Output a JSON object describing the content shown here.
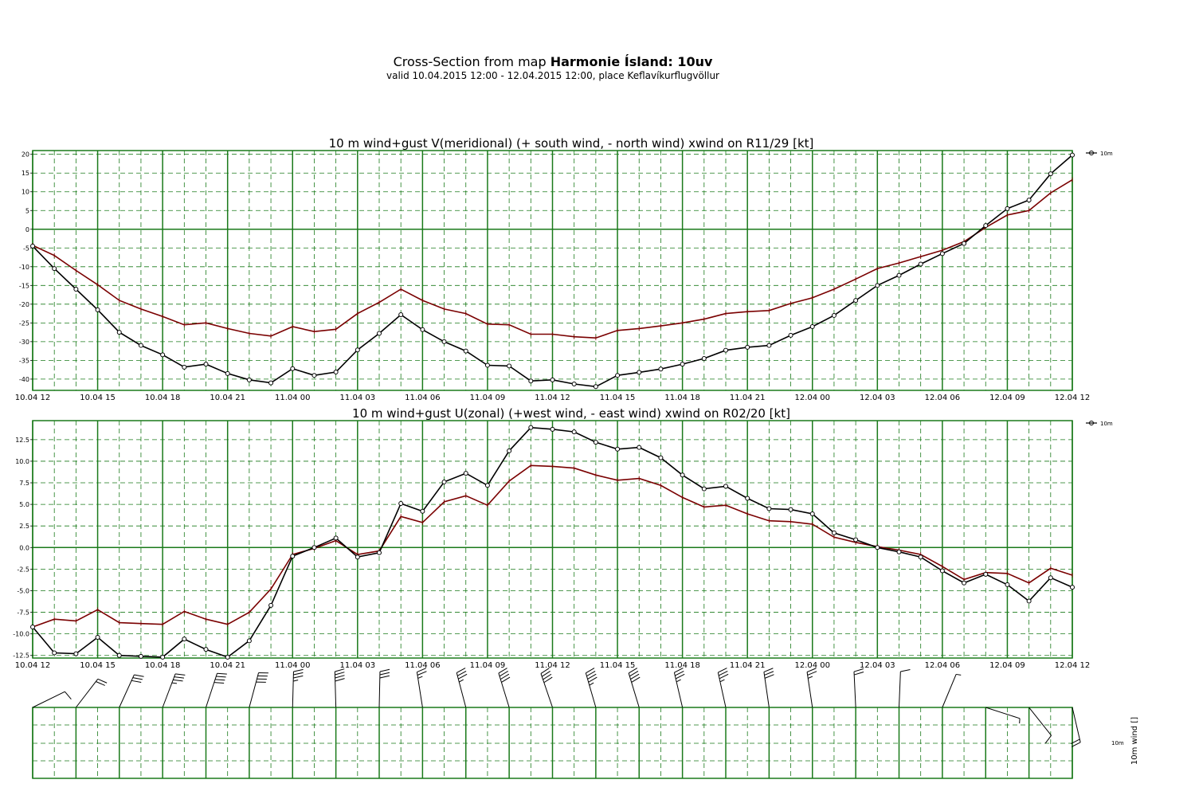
{
  "title": {
    "prefix": "Cross-Section from map ",
    "bold": "Harmonie Ísland: 10uv",
    "subtitle": "valid 10.04.2015 12:00 - 12.04.2015 12:00, place Keflavíkurflugvöllur"
  },
  "colors": {
    "grid": "#1a7a1a",
    "series_10m": "#000000",
    "series_gust": "#7a0000"
  },
  "x_tick_labels": [
    "10.04 12",
    "10.04 15",
    "10.04 18",
    "10.04 21",
    "11.04 00",
    "11.04 03",
    "11.04 06",
    "11.04 09",
    "11.04 12",
    "11.04 15",
    "11.04 18",
    "11.04 21",
    "12.04 00",
    "12.04 03",
    "12.04 06",
    "12.04 09",
    "12.04 12"
  ],
  "chart_data": [
    {
      "type": "line",
      "title": "10 m wind+gust V(meridional) (+ south wind, - north wind) xwind on R11/29 [kt]",
      "x_hours": [
        0,
        1,
        2,
        3,
        4,
        5,
        6,
        7,
        8,
        9,
        10,
        11,
        12,
        13,
        14,
        15,
        16,
        17,
        18,
        19,
        20,
        21,
        22,
        23,
        24,
        25,
        26,
        27,
        28,
        29,
        30,
        31,
        32,
        33,
        34,
        35,
        36,
        37,
        38,
        39,
        40,
        41,
        42,
        43,
        44,
        45,
        46,
        47,
        48
      ],
      "ylim": [
        -43,
        21
      ],
      "y_ticks": [
        20,
        15,
        10,
        5,
        0,
        -5,
        -10,
        -15,
        -20,
        -25,
        -30,
        -35,
        -40
      ],
      "legend": "10m",
      "series": [
        {
          "name": "10m",
          "values": [
            -4.5,
            -10.5,
            -16,
            -21.5,
            -27.5,
            -31,
            -33.5,
            -36.8,
            -36,
            -38.5,
            -40.2,
            -41,
            -37.2,
            -39,
            -38.1,
            -32.2,
            -27.8,
            -22.8,
            -26.8,
            -30,
            -32.5,
            -36.3,
            -36.5,
            -40.5,
            -40.2,
            -41.3,
            -42,
            -39,
            -38.2,
            -37.3,
            -36,
            -34.5,
            -32.3,
            -31.5,
            -31,
            -28.3,
            -26,
            -23,
            -19,
            -15,
            -12.3,
            -9.3,
            -6.5,
            -3.8,
            1,
            5.5,
            7.8,
            14.8,
            19.8
          ]
        },
        {
          "name": "gust",
          "values": [
            -4.3,
            -7,
            -11,
            -14.8,
            -19,
            -21.3,
            -23.3,
            -25.5,
            -25,
            -26.5,
            -27.8,
            -28.5,
            -26,
            -27.3,
            -26.7,
            -22.5,
            -19.5,
            -16,
            -19,
            -21.3,
            -22.5,
            -25.3,
            -25.5,
            -28,
            -28,
            -28.7,
            -29,
            -27,
            -26.5,
            -25.8,
            -25,
            -24,
            -22.5,
            -22,
            -21.7,
            -19.8,
            -18.3,
            -16,
            -13.3,
            -10.5,
            -9,
            -7.3,
            -5.6,
            -3.3,
            0.5,
            3.8,
            5,
            9.7,
            13.2
          ]
        }
      ]
    },
    {
      "type": "line",
      "title": "10 m wind+gust U(zonal) (+west wind, - east wind) xwind on R02/20 [kt]",
      "x_hours": [
        0,
        1,
        2,
        3,
        4,
        5,
        6,
        7,
        8,
        9,
        10,
        11,
        12,
        13,
        14,
        15,
        16,
        17,
        18,
        19,
        20,
        21,
        22,
        23,
        24,
        25,
        26,
        27,
        28,
        29,
        30,
        31,
        32,
        33,
        34,
        35,
        36,
        37,
        38,
        39,
        40,
        41,
        42,
        43,
        44,
        45,
        46,
        47,
        48
      ],
      "ylim": [
        -12.8,
        14.7
      ],
      "y_ticks": [
        12.5,
        10.0,
        7.5,
        5.0,
        2.5,
        0.0,
        -2.5,
        -5.0,
        -7.5,
        -10.0,
        -12.5
      ],
      "legend": "10m",
      "series": [
        {
          "name": "10m",
          "values": [
            -9.2,
            -12.2,
            -12.3,
            -10.4,
            -12.5,
            -12.6,
            -12.7,
            -10.6,
            -11.8,
            -12.7,
            -10.8,
            -6.7,
            -1,
            0,
            1.1,
            -1.1,
            -0.6,
            5.1,
            4.2,
            7.6,
            8.6,
            7.2,
            11.2,
            13.9,
            13.7,
            13.4,
            12.2,
            11.4,
            11.6,
            10.4,
            8.4,
            6.8,
            7.1,
            5.7,
            4.5,
            4.4,
            3.9,
            1.7,
            0.9,
            0,
            -0.5,
            -1.1,
            -2.7,
            -4.1,
            -3.1,
            -4.3,
            -6.2,
            -3.5,
            -4.6
          ]
        },
        {
          "name": "gust",
          "values": [
            -9.2,
            -8.3,
            -8.5,
            -7.2,
            -8.7,
            -8.8,
            -8.9,
            -7.4,
            -8.3,
            -8.9,
            -7.5,
            -4.8,
            -0.8,
            -0.1,
            0.8,
            -0.8,
            -0.4,
            3.6,
            2.9,
            5.3,
            6,
            4.9,
            7.7,
            9.5,
            9.4,
            9.2,
            8.4,
            7.8,
            8,
            7.2,
            5.8,
            4.7,
            4.9,
            3.9,
            3.1,
            3,
            2.7,
            1.2,
            0.6,
            0.1,
            -0.3,
            -0.8,
            -2.2,
            -3.7,
            -2.9,
            -3,
            -4.1,
            -2.4,
            -3.2
          ]
        }
      ]
    }
  ],
  "barb_panel": {
    "level_label": "10m",
    "axis_label": "10m wind []"
  }
}
